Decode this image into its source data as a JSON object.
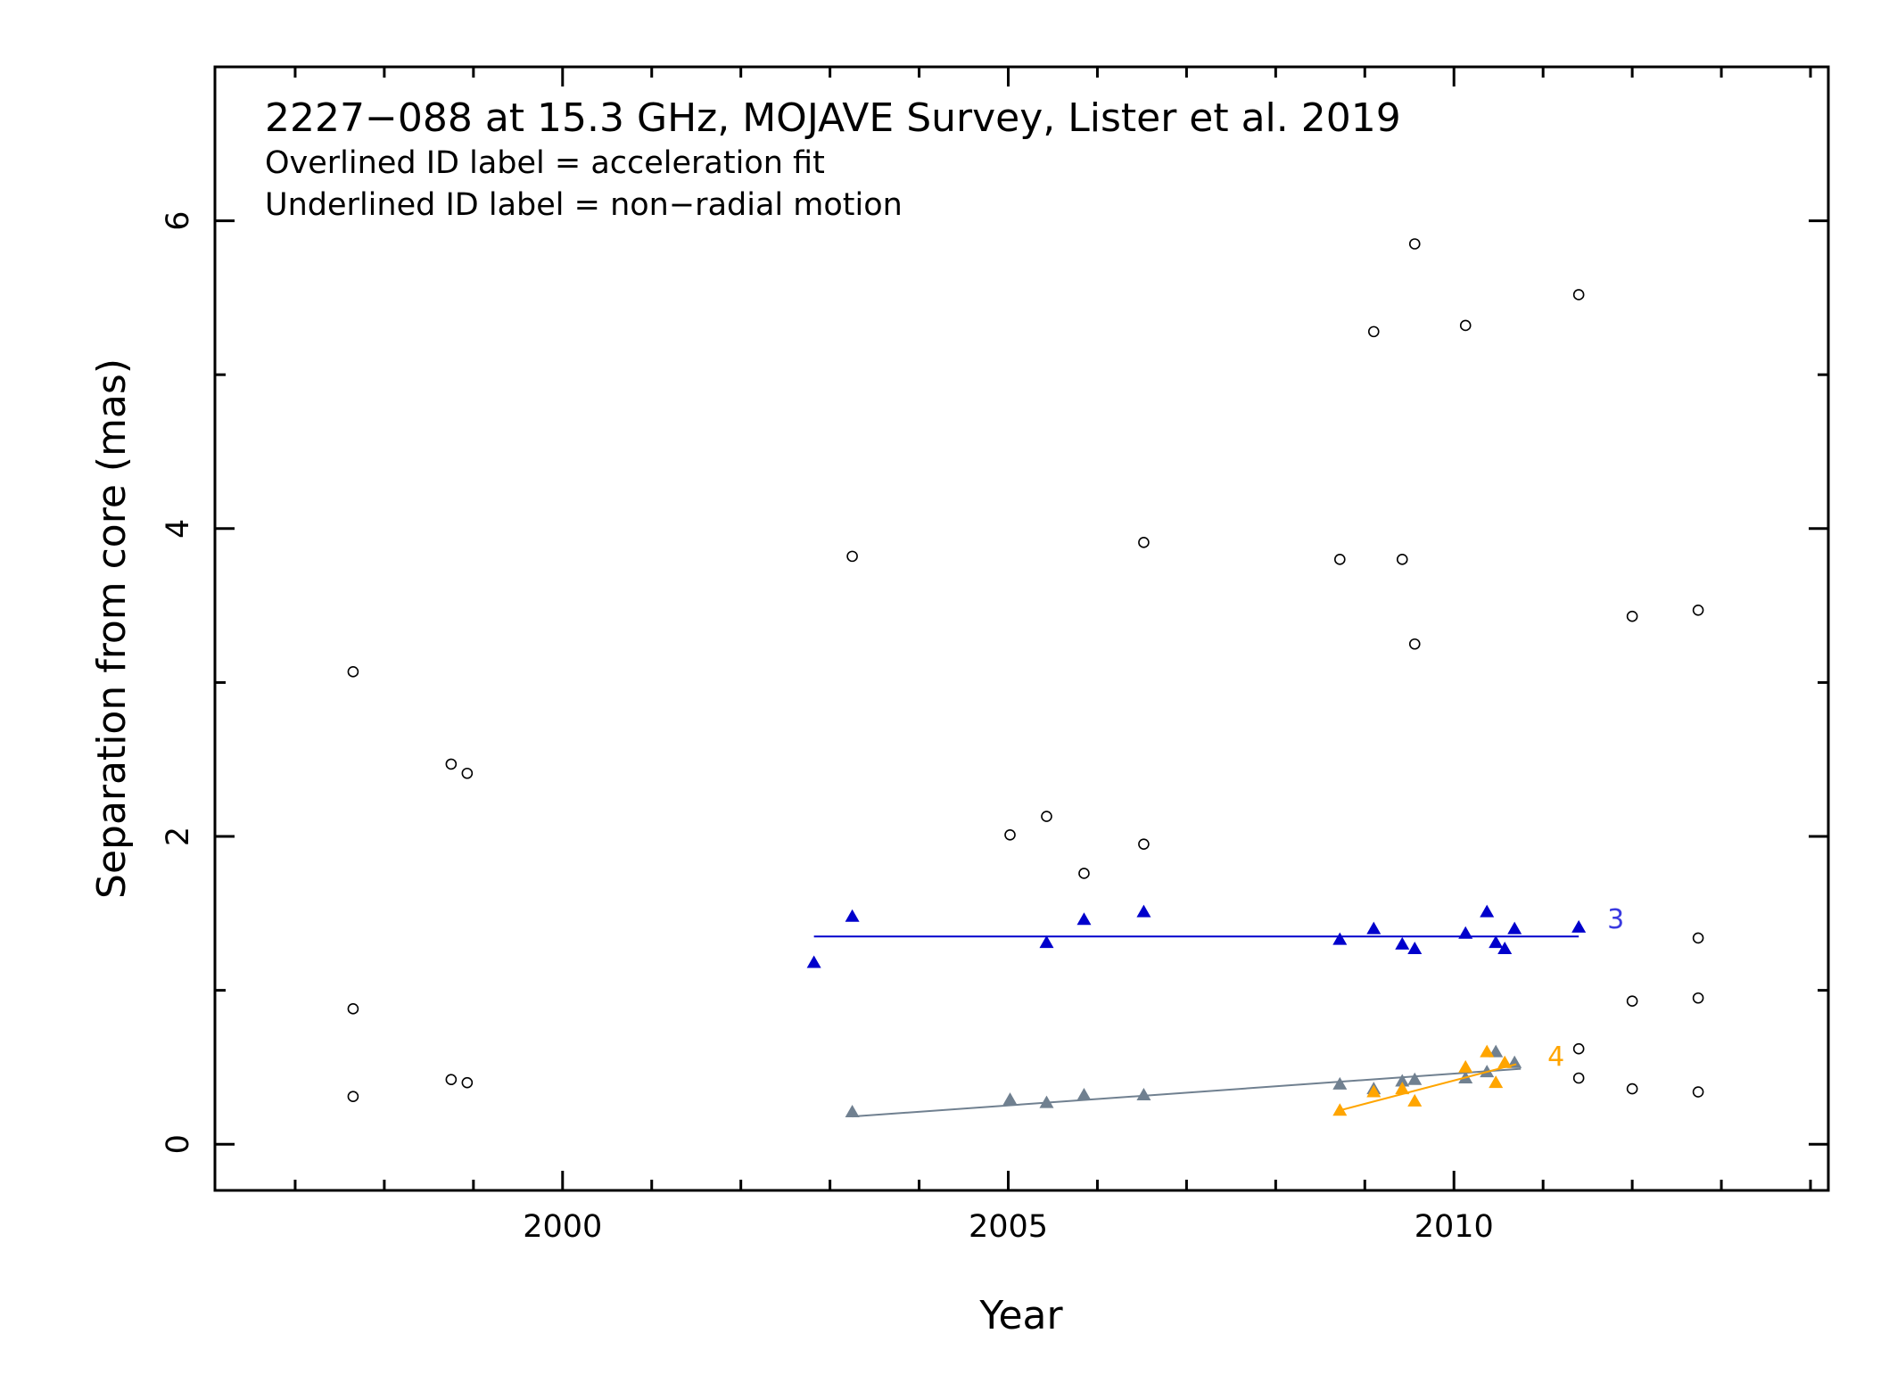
{
  "chart_data": {
    "type": "scatter",
    "title": "2227−088 at 15.3 GHz, MOJAVE Survey, Lister et al. 2019",
    "notes": [
      "Overlined ID label = acceleration fit",
      "Underlined ID label = non−radial motion"
    ],
    "xlabel": "Year",
    "ylabel": "Separation from core (mas)",
    "xlim": [
      1996.1,
      2014.2
    ],
    "ylim": [
      -0.3,
      7.0
    ],
    "x_ticks": [
      2000,
      2005,
      2010
    ],
    "y_ticks": [
      0,
      2,
      4,
      6
    ],
    "grid": false,
    "open_circles": [
      {
        "x": 1997.65,
        "y": 3.07
      },
      {
        "x": 1997.65,
        "y": 0.88
      },
      {
        "x": 1997.65,
        "y": 0.31
      },
      {
        "x": 1998.75,
        "y": 2.47
      },
      {
        "x": 1998.93,
        "y": 2.41
      },
      {
        "x": 1998.75,
        "y": 0.42
      },
      {
        "x": 1998.93,
        "y": 0.4
      },
      {
        "x": 2003.25,
        "y": 3.82
      },
      {
        "x": 2005.02,
        "y": 2.01
      },
      {
        "x": 2005.43,
        "y": 2.13
      },
      {
        "x": 2005.85,
        "y": 1.76
      },
      {
        "x": 2006.52,
        "y": 3.91
      },
      {
        "x": 2006.52,
        "y": 1.95
      },
      {
        "x": 2008.72,
        "y": 3.8
      },
      {
        "x": 2009.1,
        "y": 5.28
      },
      {
        "x": 2009.42,
        "y": 3.8
      },
      {
        "x": 2009.56,
        "y": 5.85
      },
      {
        "x": 2009.56,
        "y": 3.25
      },
      {
        "x": 2010.13,
        "y": 5.32
      },
      {
        "x": 2011.4,
        "y": 5.52
      },
      {
        "x": 2011.4,
        "y": 0.62
      },
      {
        "x": 2011.4,
        "y": 0.43
      },
      {
        "x": 2012.0,
        "y": 3.43
      },
      {
        "x": 2012.0,
        "y": 0.93
      },
      {
        "x": 2012.0,
        "y": 0.36
      },
      {
        "x": 2012.74,
        "y": 3.47
      },
      {
        "x": 2012.74,
        "y": 1.34
      },
      {
        "x": 2012.74,
        "y": 0.95
      },
      {
        "x": 2012.74,
        "y": 0.34
      }
    ],
    "series": [
      {
        "name": "3",
        "color": "#0000cc",
        "points": [
          {
            "x": 2002.82,
            "y": 1.18
          },
          {
            "x": 2003.25,
            "y": 1.48
          },
          {
            "x": 2005.43,
            "y": 1.31
          },
          {
            "x": 2005.85,
            "y": 1.46
          },
          {
            "x": 2006.52,
            "y": 1.51
          },
          {
            "x": 2008.72,
            "y": 1.33
          },
          {
            "x": 2009.1,
            "y": 1.4
          },
          {
            "x": 2009.42,
            "y": 1.3
          },
          {
            "x": 2009.56,
            "y": 1.27
          },
          {
            "x": 2010.13,
            "y": 1.37
          },
          {
            "x": 2010.37,
            "y": 1.51
          },
          {
            "x": 2010.47,
            "y": 1.31
          },
          {
            "x": 2010.57,
            "y": 1.27
          },
          {
            "x": 2010.68,
            "y": 1.4
          },
          {
            "x": 2011.4,
            "y": 1.41
          }
        ],
        "fit": [
          {
            "x": 2002.82,
            "y": 1.35
          },
          {
            "x": 2011.4,
            "y": 1.35
          }
        ]
      },
      {
        "name": "",
        "color": "#708090",
        "points": [
          {
            "x": 2003.25,
            "y": 0.21
          },
          {
            "x": 2005.02,
            "y": 0.29
          },
          {
            "x": 2005.43,
            "y": 0.27
          },
          {
            "x": 2005.85,
            "y": 0.32
          },
          {
            "x": 2006.52,
            "y": 0.32
          },
          {
            "x": 2008.72,
            "y": 0.39
          },
          {
            "x": 2009.1,
            "y": 0.36
          },
          {
            "x": 2009.42,
            "y": 0.41
          },
          {
            "x": 2009.56,
            "y": 0.42
          },
          {
            "x": 2010.13,
            "y": 0.43
          },
          {
            "x": 2010.37,
            "y": 0.47
          },
          {
            "x": 2010.47,
            "y": 0.6
          },
          {
            "x": 2010.68,
            "y": 0.53
          }
        ],
        "fit": [
          {
            "x": 2003.25,
            "y": 0.18
          },
          {
            "x": 2010.75,
            "y": 0.49
          }
        ]
      },
      {
        "name": "4",
        "color": "#ffa500",
        "points": [
          {
            "x": 2008.72,
            "y": 0.22
          },
          {
            "x": 2009.1,
            "y": 0.34
          },
          {
            "x": 2009.42,
            "y": 0.36
          },
          {
            "x": 2009.56,
            "y": 0.28
          },
          {
            "x": 2010.13,
            "y": 0.5
          },
          {
            "x": 2010.37,
            "y": 0.6
          },
          {
            "x": 2010.47,
            "y": 0.4
          },
          {
            "x": 2010.57,
            "y": 0.53
          }
        ],
        "fit": [
          {
            "x": 2008.72,
            "y": 0.22
          },
          {
            "x": 2010.7,
            "y": 0.52
          }
        ]
      }
    ],
    "series_labels": [
      {
        "text": "3",
        "color": "#3a3ae0",
        "x": 2011.72,
        "y": 1.46
      },
      {
        "text": "4",
        "color": "#ffa500",
        "x": 2011.05,
        "y": 0.57
      }
    ]
  }
}
